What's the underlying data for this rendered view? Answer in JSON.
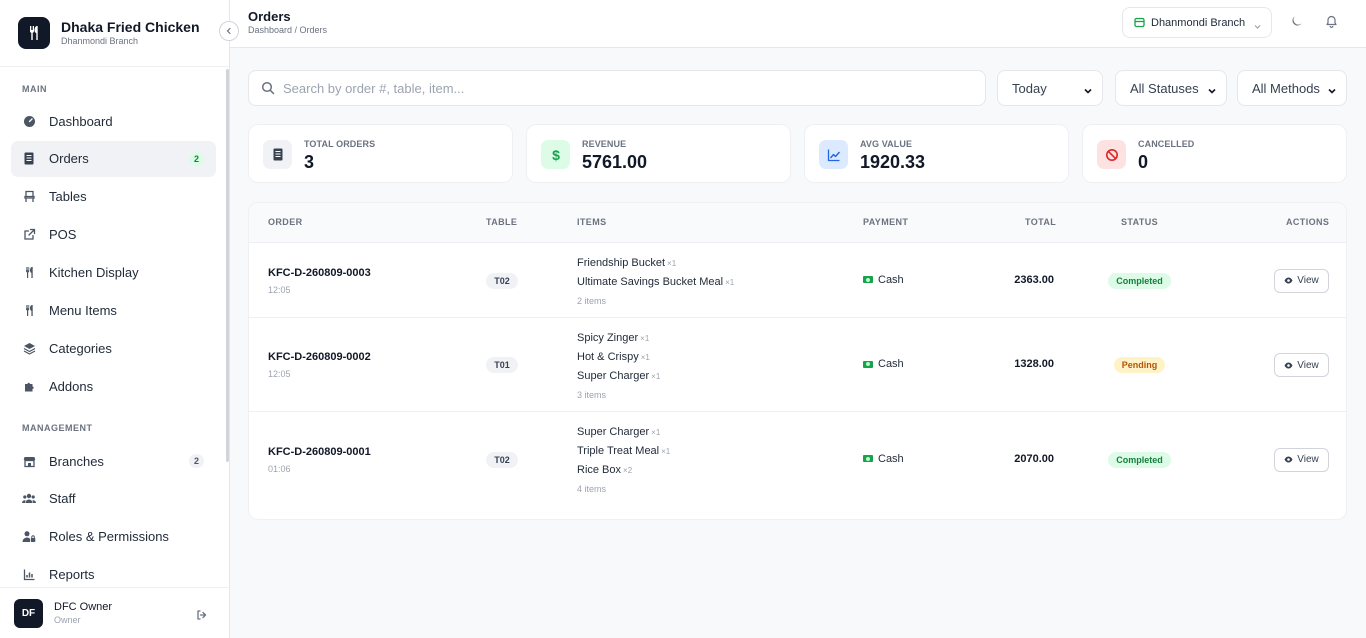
{
  "brand": {
    "name": "Dhaka Fried Chicken",
    "branch": "Dhanmondi Branch"
  },
  "sidebar": {
    "main_label": "MAIN",
    "main_items": [
      {
        "label": "Dashboard",
        "icon": "dashboard-icon"
      },
      {
        "label": "Orders",
        "icon": "receipt-icon",
        "badge": "2",
        "active": true
      },
      {
        "label": "Tables",
        "icon": "chair-icon"
      },
      {
        "label": "POS",
        "icon": "external-link-icon"
      },
      {
        "label": "Kitchen Display",
        "icon": "utensils-icon"
      },
      {
        "label": "Menu Items",
        "icon": "utensils-icon"
      },
      {
        "label": "Categories",
        "icon": "layers-icon"
      },
      {
        "label": "Addons",
        "icon": "puzzle-icon"
      }
    ],
    "management_label": "MANAGEMENT",
    "management_items": [
      {
        "label": "Branches",
        "icon": "store-icon",
        "badge": "2"
      },
      {
        "label": "Staff",
        "icon": "users-icon"
      },
      {
        "label": "Roles & Permissions",
        "icon": "user-lock-icon"
      },
      {
        "label": "Reports",
        "icon": "chart-icon"
      }
    ]
  },
  "user": {
    "initials": "DF",
    "name": "DFC Owner",
    "role": "Owner"
  },
  "header": {
    "title": "Orders",
    "breadcrumb": "Dashboard / Orders",
    "branch_select": "Dhanmondi Branch"
  },
  "filters": {
    "search_placeholder": "Search by order #, table, item...",
    "date": "Today",
    "status": "All Statuses",
    "method": "All Methods"
  },
  "stats": [
    {
      "label": "TOTAL ORDERS",
      "value": "3",
      "icon": "receipt-icon",
      "color": "#f1f2f5"
    },
    {
      "label": "REVENUE",
      "value": "5761.00",
      "icon": "dollar-icon",
      "color": "#dcfce7"
    },
    {
      "label": "AVG VALUE",
      "value": "1920.33",
      "icon": "trend-icon",
      "color": "#dbeafe"
    },
    {
      "label": "CANCELLED",
      "value": "0",
      "icon": "ban-icon",
      "color": "#fee2e2"
    }
  ],
  "table": {
    "headers": {
      "order": "ORDER",
      "table": "TABLE",
      "items": "ITEMS",
      "payment": "PAYMENT",
      "total": "TOTAL",
      "status": "STATUS",
      "actions": "ACTIONS"
    },
    "view_label": "View",
    "rows": [
      {
        "order_no": "KFC-D-260809-0003",
        "time": "12:05",
        "table": "T02",
        "items": [
          {
            "name": "Friendship Bucket",
            "qty": "×1"
          },
          {
            "name": "Ultimate Savings Bucket Meal",
            "qty": "×1"
          }
        ],
        "item_count": "2 items",
        "payment": "Cash",
        "total": "2363.00",
        "status": "Completed"
      },
      {
        "order_no": "KFC-D-260809-0002",
        "time": "12:05",
        "table": "T01",
        "items": [
          {
            "name": "Spicy Zinger",
            "qty": "×1"
          },
          {
            "name": "Hot & Crispy",
            "qty": "×1"
          },
          {
            "name": "Super Charger",
            "qty": "×1"
          }
        ],
        "item_count": "3 items",
        "payment": "Cash",
        "total": "1328.00",
        "status": "Pending"
      },
      {
        "order_no": "KFC-D-260809-0001",
        "time": "01:06",
        "table": "T02",
        "items": [
          {
            "name": "Super Charger",
            "qty": "×1"
          },
          {
            "name": "Triple Treat Meal",
            "qty": "×1"
          },
          {
            "name": "Rice Box",
            "qty": "×2"
          }
        ],
        "item_count": "4 items",
        "payment": "Cash",
        "total": "2070.00",
        "status": "Completed"
      }
    ]
  }
}
